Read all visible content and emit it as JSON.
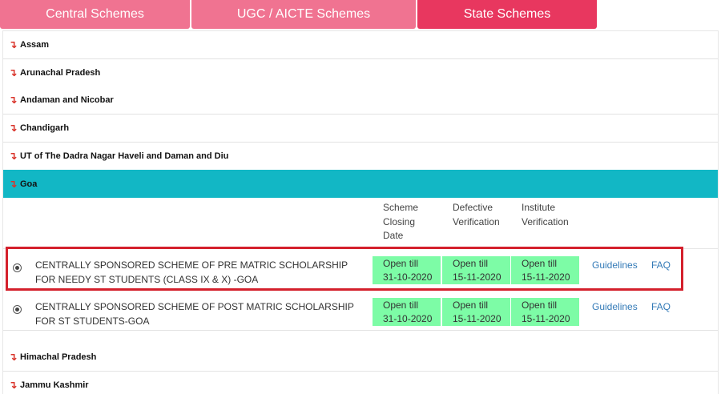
{
  "tabs": [
    {
      "label": "Central Schemes"
    },
    {
      "label": "UGC / AICTE Schemes"
    },
    {
      "label": "State Schemes"
    }
  ],
  "active_tab": "State Schemes",
  "arrow_glyph": "↴",
  "states_before": [
    {
      "label": "Assam"
    },
    {
      "label": "Arunachal Pradesh"
    },
    {
      "label": "Andaman and Nicobar"
    },
    {
      "label": "Chandigarh"
    },
    {
      "label": "UT of The Dadra Nagar Haveli and Daman and Diu"
    }
  ],
  "active_state": {
    "label": "Goa"
  },
  "columns": {
    "closing": [
      "Scheme",
      "Closing",
      "Date"
    ],
    "defective": [
      "Defective",
      "Verification"
    ],
    "institute": [
      "Institute",
      "Verification"
    ]
  },
  "schemes": [
    {
      "name_lines": [
        "CENTRALLY SPONSORED SCHEME OF PRE MATRIC SCHOLARSHIP",
        "FOR NEEDY ST STUDENTS (CLASS IX & X) -GOA"
      ],
      "closing": [
        "Open till",
        "31-10-2020"
      ],
      "defective": [
        "Open till",
        "15-11-2020"
      ],
      "institute": [
        "Open till",
        "15-11-2020"
      ],
      "guidelines": "Guidelines",
      "faq": "FAQ"
    },
    {
      "name_lines": [
        "CENTRALLY SPONSORED SCHEME OF POST MATRIC SCHOLARSHIP",
        "FOR ST STUDENTS-GOA"
      ],
      "closing": [
        "Open till",
        "31-10-2020"
      ],
      "defective": [
        "Open till",
        "15-11-2020"
      ],
      "institute": [
        "Open till",
        "15-11-2020"
      ],
      "guidelines": "Guidelines",
      "faq": "FAQ"
    }
  ],
  "states_after": [
    {
      "label": "Himachal Pradesh"
    },
    {
      "label": "Jammu Kashmir"
    }
  ],
  "colors": {
    "tab_inactive": "#f07391",
    "tab_active": "#e8375f",
    "active_state_bg": "#12b7c5",
    "status_cell_bg": "#7dfca6",
    "highlight_border": "#d4202c",
    "link": "#337ab7"
  }
}
